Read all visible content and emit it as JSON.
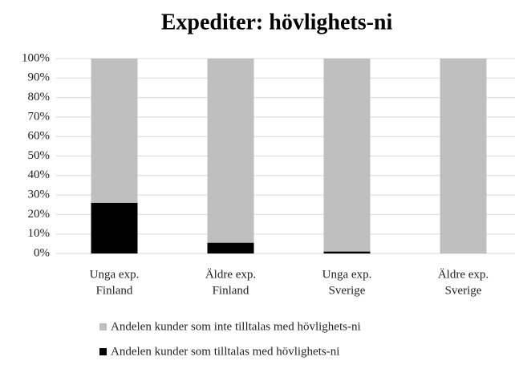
{
  "chart_data": {
    "type": "stacked_bar",
    "title": "Expediter: hövlighets-ni",
    "categories": [
      [
        "Unga exp.",
        "Finland"
      ],
      [
        "Äldre exp.",
        "Finland"
      ],
      [
        "Unga exp.",
        "Sverige"
      ],
      [
        "Äldre exp.",
        "Sverige"
      ]
    ],
    "series": [
      {
        "name": "Andelen kunder som tilltalas med hövlighets-ni",
        "color": "#000000",
        "values": [
          26,
          5.5,
          1,
          0
        ]
      },
      {
        "name": "Andelen kunder som inte tilltalas med hövlighets-ni",
        "color": "#bfbfbf",
        "values": [
          74,
          94.5,
          99,
          100
        ]
      }
    ],
    "legend_order": [
      1,
      0
    ],
    "ylim": [
      0,
      100
    ],
    "yticks": [
      {
        "value": 0,
        "label": "0%"
      },
      {
        "value": 10,
        "label": "10%"
      },
      {
        "value": 20,
        "label": "20%"
      },
      {
        "value": 30,
        "label": "30%"
      },
      {
        "value": 40,
        "label": "40%"
      },
      {
        "value": 50,
        "label": "50%"
      },
      {
        "value": 60,
        "label": "60%"
      },
      {
        "value": 70,
        "label": "70%"
      },
      {
        "value": 80,
        "label": "80%"
      },
      {
        "value": 90,
        "label": "90%"
      },
      {
        "value": 100,
        "label": "100%"
      }
    ],
    "grid": true
  }
}
